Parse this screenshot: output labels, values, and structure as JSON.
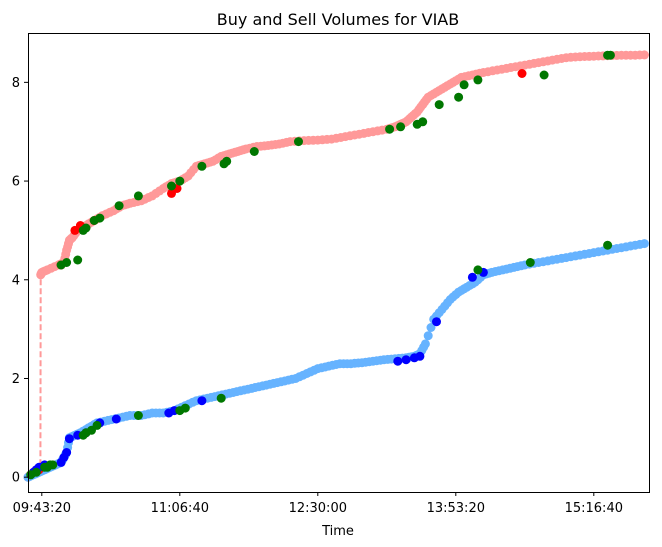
{
  "chart_data": {
    "type": "scatter",
    "title": "Buy and Sell Volumes for VIAB",
    "xlabel": "Time",
    "ylabel": "",
    "x_unit": "seconds since midnight",
    "xlim": [
      34500,
      57000
    ],
    "ylim": [
      -0.3,
      9.0
    ],
    "x_ticks": [
      35000,
      40000,
      45000,
      50000,
      55000
    ],
    "x_tick_labels": [
      "09:43:20",
      "11:06:40",
      "12:30:00",
      "13:53:20",
      "15:16:40"
    ],
    "y_ticks": [
      0,
      2,
      4,
      6,
      8
    ],
    "y_tick_labels": [
      "0",
      "2",
      "4",
      "6",
      "8"
    ],
    "grid": false,
    "legend": "none",
    "colors": {
      "sell_line": "#ff9999",
      "sell_point": "#ff9999",
      "sell_highlight": "#ff0000",
      "buy_line": "#66b3ff",
      "buy_point": "#66b3ff",
      "buy_highlight": "#0000ff",
      "marker": "#007700"
    },
    "series": [
      {
        "role": "sell-line",
        "style": "dashed",
        "x": [
          34500,
          34600,
          34700,
          34800,
          34900,
          34950,
          34960,
          35000,
          35200,
          35600,
          35800,
          35900,
          36000,
          36100,
          36300,
          36600,
          36900,
          37200,
          37600,
          37900,
          38200,
          38600,
          39000,
          39400,
          39700,
          40000,
          40300,
          40600,
          40900,
          41200,
          41500,
          41800,
          42100,
          42400,
          42800,
          43200,
          43600,
          44000,
          44500,
          45000,
          45500,
          46000,
          46500,
          47000,
          47500,
          47800,
          48000,
          48200,
          48400,
          48600,
          48800,
          49000,
          49300,
          49600,
          49900,
          50200,
          50600,
          51000,
          51500,
          52000,
          52500,
          53000,
          53500,
          54000,
          54500,
          55000,
          55500,
          56000,
          56500,
          57000
        ],
        "y": [
          0.0,
          0.05,
          0.1,
          0.15,
          0.18,
          0.2,
          4.1,
          4.15,
          4.2,
          4.3,
          4.35,
          4.6,
          4.8,
          4.85,
          5.0,
          5.1,
          5.2,
          5.3,
          5.4,
          5.5,
          5.55,
          5.6,
          5.7,
          5.85,
          5.95,
          6.0,
          6.1,
          6.3,
          6.35,
          6.4,
          6.5,
          6.55,
          6.6,
          6.65,
          6.7,
          6.72,
          6.75,
          6.8,
          6.82,
          6.83,
          6.85,
          6.9,
          6.95,
          7.0,
          7.05,
          7.1,
          7.15,
          7.2,
          7.3,
          7.4,
          7.55,
          7.7,
          7.8,
          7.9,
          8.0,
          8.1,
          8.15,
          8.2,
          8.25,
          8.3,
          8.35,
          8.4,
          8.45,
          8.5,
          8.52,
          8.53,
          8.54,
          8.55,
          8.55,
          8.56
        ]
      },
      {
        "role": "sell-highlight",
        "x": [
          34900,
          34950,
          35700,
          36200,
          36400,
          36900,
          39700,
          39900,
          52400
        ],
        "y": [
          0.15,
          0.2,
          4.3,
          5.0,
          5.1,
          5.2,
          5.75,
          5.85,
          8.18
        ]
      },
      {
        "role": "buy-line",
        "style": "dashed",
        "x": [
          34500,
          34700,
          34900,
          35100,
          35300,
          35500,
          35700,
          35800,
          35900,
          36000,
          36200,
          36400,
          36700,
          37000,
          37400,
          37800,
          38200,
          38600,
          39000,
          39400,
          39800,
          40200,
          40600,
          41000,
          41400,
          41800,
          42200,
          42600,
          43000,
          43400,
          43800,
          44200,
          44600,
          45000,
          45400,
          45800,
          46200,
          46600,
          47000,
          47400,
          47800,
          48200,
          48500,
          48700,
          48900,
          49200,
          49500,
          49800,
          50100,
          50400,
          50700,
          51000,
          51300,
          51700,
          52100,
          52500,
          53000,
          53500,
          54000,
          54500,
          55000,
          55500,
          56000,
          56500,
          57000
        ],
        "y": [
          0.0,
          0.05,
          0.1,
          0.15,
          0.2,
          0.25,
          0.3,
          0.4,
          0.5,
          0.8,
          0.85,
          0.9,
          1.0,
          1.1,
          1.15,
          1.2,
          1.25,
          1.25,
          1.3,
          1.3,
          1.35,
          1.45,
          1.55,
          1.6,
          1.65,
          1.7,
          1.75,
          1.8,
          1.85,
          1.9,
          1.95,
          2.0,
          2.1,
          2.2,
          2.25,
          2.3,
          2.3,
          2.32,
          2.35,
          2.38,
          2.4,
          2.42,
          2.45,
          2.5,
          2.7,
          3.2,
          3.4,
          3.6,
          3.75,
          3.85,
          3.95,
          4.1,
          4.15,
          4.2,
          4.25,
          4.3,
          4.35,
          4.4,
          4.45,
          4.5,
          4.55,
          4.6,
          4.65,
          4.7,
          4.75
        ]
      },
      {
        "role": "buy-highlight",
        "x": [
          34700,
          34800,
          34900,
          35100,
          35700,
          35800,
          35900,
          36000,
          36300,
          36600,
          37100,
          37700,
          39600,
          39800,
          40800,
          47900,
          48200,
          48500,
          48700,
          49300,
          50600,
          51000
        ],
        "y": [
          0.1,
          0.15,
          0.2,
          0.25,
          0.3,
          0.4,
          0.5,
          0.78,
          0.85,
          0.9,
          1.1,
          1.18,
          1.3,
          1.35,
          1.55,
          2.35,
          2.38,
          2.42,
          2.45,
          3.15,
          4.05,
          4.15
        ]
      },
      {
        "role": "markers",
        "x": [
          34600,
          34800,
          35200,
          35400,
          35700,
          35900,
          36300,
          36500,
          36600,
          36900,
          37100,
          37800,
          38500,
          39700,
          40000,
          40800,
          41600,
          41700,
          42700,
          44300,
          47600,
          48000,
          48600,
          48800,
          49400,
          50100,
          50300,
          50800,
          53200,
          55500,
          55600,
          34600,
          35100,
          35300,
          36500,
          36600,
          36800,
          37000,
          38500,
          40000,
          40200,
          41500,
          50800,
          52700,
          55500
        ],
        "y": [
          0.05,
          0.1,
          0.2,
          0.25,
          4.3,
          4.35,
          4.4,
          5.0,
          5.05,
          5.2,
          5.25,
          5.5,
          5.7,
          5.9,
          6.0,
          6.3,
          6.35,
          6.4,
          6.6,
          6.8,
          7.05,
          7.1,
          7.15,
          7.2,
          7.55,
          7.7,
          7.95,
          8.05,
          8.15,
          8.55,
          8.55,
          0.05,
          0.2,
          0.25,
          0.85,
          0.9,
          0.95,
          1.05,
          1.25,
          1.35,
          1.4,
          1.6,
          4.2,
          4.35,
          4.7
        ]
      }
    ]
  }
}
